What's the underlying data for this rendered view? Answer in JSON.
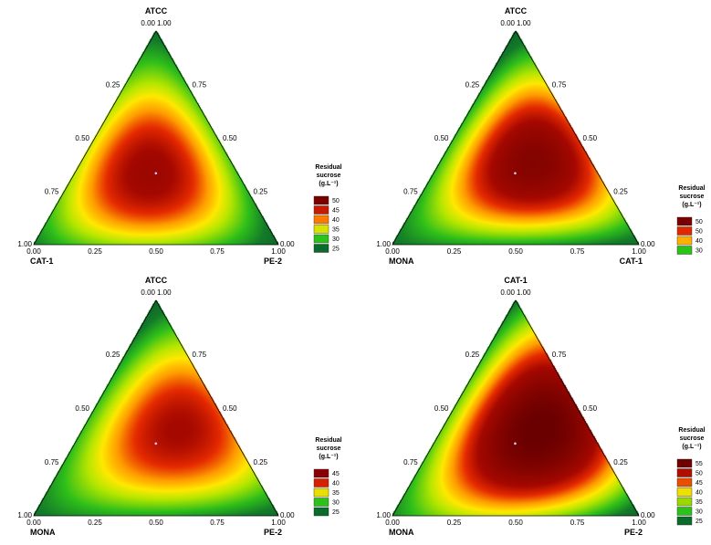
{
  "chart_data": [
    {
      "type": "heatmap",
      "subtype": "ternary-contour",
      "vertices": {
        "top": "ATCC",
        "left": "CAT-1",
        "right": "PE-2"
      },
      "left_edge_ticks": [
        "1.00",
        "0.75",
        "0.50",
        "0.25",
        "0.00"
      ],
      "right_edge_ticks": [
        "1.00",
        "0.75",
        "0.50",
        "0.25",
        "0.00"
      ],
      "bottom_edge_ticks": [
        "0.00",
        "0.25",
        "0.50",
        "0.75",
        "1.00"
      ],
      "legend": {
        "title": [
          "Residual",
          "sucrose",
          "(g.L⁻¹)"
        ],
        "levels": [
          "50",
          "45",
          "40",
          "35",
          "30",
          "25"
        ],
        "colors": [
          "#7a0000",
          "#c81a00",
          "#ff7a00",
          "#d8e400",
          "#2dc21a",
          "#0a6b2a"
        ]
      },
      "model": {
        "center_value": 50,
        "vertex_values": [
          25,
          27,
          23
        ],
        "edge_midpoint_values": [
          38,
          36,
          34
        ]
      },
      "design_point": {
        "a": 0.333,
        "b": 0.333,
        "c": 0.333
      }
    },
    {
      "type": "heatmap",
      "subtype": "ternary-contour",
      "vertices": {
        "top": "ATCC",
        "left": "MONA",
        "right": "CAT-1"
      },
      "left_edge_ticks": [
        "1.00",
        "0.75",
        "0.50",
        "0.25",
        "0.00"
      ],
      "right_edge_ticks": [
        "1.00",
        "0.75",
        "0.50",
        "0.25",
        "0.00"
      ],
      "bottom_edge_ticks": [
        "0.00",
        "0.25",
        "0.50",
        "0.75",
        "1.00"
      ],
      "legend": {
        "title": [
          "Residual",
          "sucrose",
          "(g.L⁻¹)"
        ],
        "levels": [
          "50",
          "50",
          "40",
          "30"
        ],
        "colors": [
          "#7a0000",
          "#e02800",
          "#ffb000",
          "#2dc21a"
        ]
      },
      "model": {
        "center_value": 52,
        "vertex_values": [
          22,
          26,
          24
        ],
        "edge_midpoint_values": [
          32,
          30,
          46
        ]
      },
      "design_point": {
        "a": 0.333,
        "b": 0.333,
        "c": 0.333
      }
    },
    {
      "type": "heatmap",
      "subtype": "ternary-contour",
      "vertices": {
        "top": "ATCC",
        "left": "MONA",
        "right": "PE-2"
      },
      "left_edge_ticks": [
        "1.00",
        "0.75",
        "0.50",
        "0.25",
        "0.00"
      ],
      "right_edge_ticks": [
        "1.00",
        "0.75",
        "0.50",
        "0.25",
        "0.00"
      ],
      "bottom_edge_ticks": [
        "0.00",
        "0.25",
        "0.50",
        "0.75",
        "1.00"
      ],
      "legend": {
        "title": [
          "Residual",
          "sucrose",
          "(g.L⁻¹)"
        ],
        "levels": [
          "45",
          "40",
          "35",
          "30",
          "25"
        ],
        "colors": [
          "#8a0000",
          "#d82000",
          "#e8e000",
          "#2dc21a",
          "#0a6b2a"
        ]
      },
      "model": {
        "center_value": 48,
        "vertex_values": [
          22,
          26,
          24
        ],
        "edge_midpoint_values": [
          32,
          30,
          45
        ]
      },
      "design_point": {
        "a": 0.333,
        "b": 0.333,
        "c": 0.333
      }
    },
    {
      "type": "heatmap",
      "subtype": "ternary-contour",
      "vertices": {
        "top": "CAT-1",
        "left": "MONA",
        "right": "PE-2"
      },
      "left_edge_ticks": [
        "1.00",
        "0.75",
        "0.50",
        "0.25",
        "0.00"
      ],
      "right_edge_ticks": [
        "1.00",
        "0.75",
        "0.50",
        "0.25",
        "0.00"
      ],
      "bottom_edge_ticks": [
        "0.00",
        "0.25",
        "0.50",
        "0.75",
        "1.00"
      ],
      "legend": {
        "title": [
          "Residual",
          "sucrose",
          "(g.L⁻¹)"
        ],
        "levels": [
          "55",
          "50",
          "45",
          "40",
          "35",
          "30",
          "25"
        ],
        "colors": [
          "#6e0000",
          "#b00f00",
          "#e85000",
          "#f0e000",
          "#9ad800",
          "#2dc21a",
          "#0a6b2a"
        ]
      },
      "model": {
        "center_value": 55,
        "vertex_values": [
          26,
          28,
          22
        ],
        "edge_midpoint_values": [
          34,
          38,
          52
        ]
      },
      "design_point": {
        "a": 0.333,
        "b": 0.333,
        "c": 0.333
      }
    }
  ]
}
